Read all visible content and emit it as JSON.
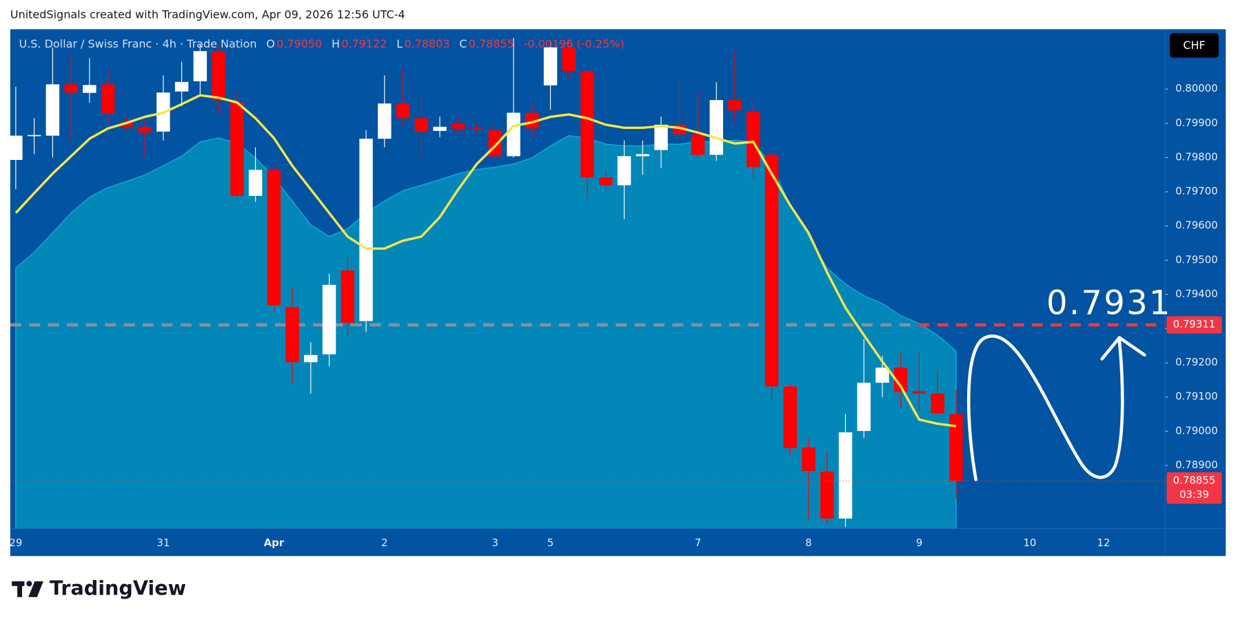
{
  "header": {
    "title": "UnitedSignals created with TradingView.com, Apr 09, 2026 12:56 UTC-4"
  },
  "footer": {
    "brand": "TradingView"
  },
  "chart_data": {
    "type": "candlestick",
    "legend": {
      "symbol": "U.S. Dollar / Swiss Franc · 4h · Trade Nation",
      "fields": [
        {
          "key": "O",
          "value": "0.79050"
        },
        {
          "key": "H",
          "value": "0.79122"
        },
        {
          "key": "L",
          "value": "0.78803"
        },
        {
          "key": "C",
          "value": "0.78855"
        }
      ],
      "change": "-0.00196 (-0.25%)"
    },
    "currency": "CHF",
    "annotation": "0.7931",
    "categories": [
      "29",
      null,
      null,
      null,
      null,
      null,
      null,
      null,
      "31",
      null,
      null,
      null,
      null,
      null,
      "Apr",
      null,
      null,
      null,
      null,
      null,
      "2",
      null,
      null,
      null,
      null,
      null,
      "3",
      null,
      null,
      "5",
      null,
      null,
      null,
      null,
      null,
      null,
      null,
      "7",
      null,
      null,
      null,
      null,
      null,
      "8",
      null,
      null,
      null,
      null,
      null,
      "9",
      null,
      null,
      null,
      null,
      null,
      "10",
      null,
      null,
      null,
      "12"
    ],
    "open": [
      0.79793,
      0.79866,
      0.79864,
      0.80014,
      0.79989,
      0.80014,
      0.79902,
      0.79889,
      0.79876,
      0.79993,
      0.80023,
      0.80111,
      0.79961,
      0.79688,
      0.79764,
      0.79363,
      0.79202,
      0.79225,
      0.7947,
      0.79322,
      0.79855,
      0.79958,
      0.79915,
      0.79878,
      0.79898,
      0.79885,
      0.7988,
      0.79804,
      0.79931,
      0.80011,
      0.80122,
      0.80053,
      0.79742,
      0.79719,
      0.79804,
      0.79822,
      0.79896,
      0.79868,
      0.79808,
      0.79968,
      0.79935,
      0.79808,
      0.79131,
      0.78953,
      0.78882,
      0.78745,
      0.79001,
      0.79142,
      0.79186,
      0.79117,
      0.7911,
      0.7905,
      null,
      null,
      null,
      null,
      null,
      null,
      null,
      null
    ],
    "high": [
      0.80007,
      0.79915,
      0.80122,
      0.801,
      0.8009,
      0.8006,
      0.7992,
      0.7991,
      0.8004,
      0.8008,
      0.8013,
      0.8013,
      0.7999,
      0.7983,
      0.7978,
      0.7942,
      0.7926,
      0.7946,
      0.7951,
      0.7988,
      0.8004,
      0.8006,
      0.7998,
      0.7992,
      0.7992,
      0.799,
      0.799,
      0.8015,
      0.7996,
      0.8014,
      0.8015,
      0.8006,
      0.7976,
      0.7985,
      0.7985,
      0.7992,
      0.8003,
      0.7999,
      0.8002,
      0.8011,
      0.7997,
      0.7982,
      0.7914,
      0.7898,
      0.7894,
      0.7905,
      0.7927,
      0.7922,
      0.7923,
      0.7923,
      0.7918,
      0.79122,
      null,
      null,
      null,
      null,
      null,
      null,
      null,
      null
    ],
    "low": [
      0.79707,
      0.7981,
      0.798,
      0.7985,
      0.7996,
      0.799,
      0.7988,
      0.798,
      0.7985,
      0.7995,
      0.7998,
      0.7993,
      0.7968,
      0.7967,
      0.7935,
      0.7914,
      0.7911,
      0.7919,
      0.7928,
      0.7929,
      0.7983,
      0.7989,
      0.798,
      0.7986,
      0.7987,
      0.7987,
      0.798,
      0.798,
      0.7986,
      0.7994,
      0.8003,
      0.7968,
      0.7971,
      0.7962,
      0.7975,
      0.7977,
      0.7985,
      0.798,
      0.7979,
      0.799,
      0.7974,
      0.7909,
      0.7893,
      0.7874,
      0.7873,
      0.7872,
      0.7898,
      0.791,
      0.7907,
      0.7906,
      0.7905,
      0.78803,
      null,
      null,
      null,
      null,
      null,
      null,
      null,
      null
    ],
    "close": [
      0.79864,
      0.79866,
      0.80014,
      0.7999,
      0.80012,
      0.79928,
      0.7989,
      0.79873,
      0.7999,
      0.80021,
      0.80111,
      0.79968,
      0.79688,
      0.79764,
      0.79368,
      0.79202,
      0.79223,
      0.79428,
      0.79317,
      0.79855,
      0.79958,
      0.79915,
      0.79875,
      0.7989,
      0.79884,
      0.79882,
      0.79804,
      0.79931,
      0.79885,
      0.80122,
      0.80053,
      0.79742,
      0.79719,
      0.79804,
      0.7981,
      0.79896,
      0.79868,
      0.79808,
      0.79968,
      0.79938,
      0.79772,
      0.79131,
      0.78951,
      0.78884,
      0.78745,
      0.78997,
      0.79142,
      0.79186,
      0.79115,
      0.7911,
      0.79052,
      0.78855,
      null,
      null,
      null,
      null,
      null,
      null,
      null,
      null
    ],
    "up_color": "#ffffff",
    "down_color": "#ff0000",
    "background": "#0253a1",
    "overlays": [
      {
        "type": "area",
        "color": "#0387b8",
        "values": [
          0.79477,
          0.79523,
          0.7958,
          0.79638,
          0.79684,
          0.79712,
          0.7973,
          0.79749,
          0.79776,
          0.79804,
          0.79846,
          0.79857,
          0.79841,
          0.79799,
          0.79742,
          0.79673,
          0.79603,
          0.79569,
          0.79592,
          0.79638,
          0.79673,
          0.79703,
          0.79719,
          0.79735,
          0.79753,
          0.79765,
          0.79772,
          0.79781,
          0.79799,
          0.79834,
          0.79864,
          0.79857,
          0.79839,
          0.79834,
          0.79834,
          0.79839,
          0.79839,
          0.79846,
          0.79846,
          0.7985,
          0.79846,
          0.79776,
          0.79661,
          0.79569,
          0.79477,
          0.7943,
          0.79396,
          0.79373,
          0.79338,
          0.79315,
          0.79281,
          0.79234,
          null,
          null,
          null,
          null,
          null,
          null,
          null,
          null
        ]
      },
      {
        "type": "line",
        "color": "#f5e64a",
        "values": [
          0.79638,
          0.79696,
          0.79753,
          0.79804,
          0.79855,
          0.79885,
          0.79901,
          0.79919,
          0.79931,
          0.79956,
          0.79982,
          0.79975,
          0.79961,
          0.79915,
          0.79857,
          0.79776,
          0.79707,
          0.79638,
          0.79569,
          0.79534,
          0.79534,
          0.79557,
          0.79569,
          0.79626,
          0.79707,
          0.79781,
          0.79834,
          0.79892,
          0.79903,
          0.79919,
          0.79926,
          0.79915,
          0.79896,
          0.79887,
          0.79887,
          0.79892,
          0.79887,
          0.79873,
          0.79857,
          0.79841,
          0.79846,
          0.79753,
          0.79661,
          0.7958,
          0.79465,
          0.79361,
          0.79281,
          0.79204,
          0.79131,
          0.79034,
          0.79022,
          0.79015,
          null,
          null,
          null,
          null,
          null,
          null,
          null,
          null
        ]
      }
    ],
    "hlines": [
      {
        "value": 0.79311,
        "color": "#8a8f9e",
        "accent": "#f23645"
      }
    ],
    "price_tags": [
      {
        "value": 0.79311,
        "label": "0.79311",
        "color": "#f23645"
      },
      {
        "value": 0.78855,
        "label": "0.78855",
        "countdown": "03:39",
        "color": "#f23645"
      }
    ],
    "ylim": [
      0.78716,
      0.80175
    ],
    "yticks": [
      {
        "value": 0.789,
        "label": "0.78900"
      },
      {
        "value": 0.79,
        "label": "0.79000"
      },
      {
        "value": 0.791,
        "label": "0.79100"
      },
      {
        "value": 0.792,
        "label": "0.79200"
      },
      {
        "value": 0.793,
        "label": "0.79300"
      },
      {
        "value": 0.794,
        "label": "0.79400"
      },
      {
        "value": 0.795,
        "label": "0.79500"
      },
      {
        "value": 0.796,
        "label": "0.79600"
      },
      {
        "value": 0.797,
        "label": "0.79700"
      },
      {
        "value": 0.798,
        "label": "0.79800"
      },
      {
        "value": 0.799,
        "label": "0.79900"
      },
      {
        "value": 0.8,
        "label": "0.80000"
      }
    ],
    "grid": false
  }
}
